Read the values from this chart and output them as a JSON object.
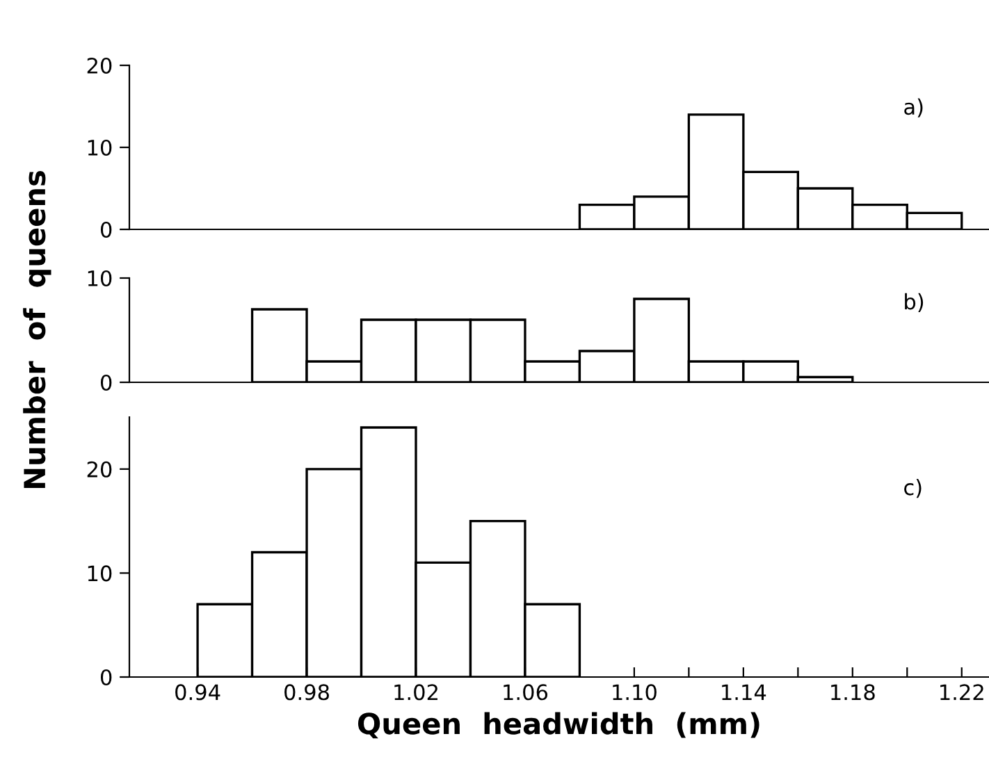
{
  "chart_data": [
    {
      "type": "histogram",
      "bins": [
        1.08,
        1.1,
        1.12,
        1.14,
        1.16,
        1.18,
        1.2,
        1.22
      ],
      "values": [
        3,
        4,
        14,
        7,
        5,
        3,
        2
      ],
      "color": "#ffffff",
      "xlim": [
        0.915,
        1.23
      ],
      "ylim": [
        0,
        20
      ],
      "yticks": [
        0,
        10,
        20
      ],
      "tick_labels": "y",
      "annotations": [
        "a)"
      ]
    },
    {
      "type": "histogram",
      "bins": [
        0.96,
        0.98,
        1.0,
        1.02,
        1.04,
        1.06,
        1.08,
        1.1,
        1.12,
        1.14,
        1.16,
        1.18
      ],
      "values": [
        7,
        2,
        6,
        6,
        6,
        2,
        3,
        8,
        2,
        2,
        0.5
      ],
      "color": "#ffffff",
      "xlim": [
        0.915,
        1.23
      ],
      "ylim": [
        0,
        10
      ],
      "yticks": [
        0,
        10
      ],
      "tick_labels": "y",
      "ylabel": "Number  of  queens",
      "annotations": [
        "b)"
      ]
    },
    {
      "type": "histogram",
      "bins": [
        0.94,
        0.96,
        0.98,
        1.0,
        1.02,
        1.04,
        1.06,
        1.08
      ],
      "values": [
        7,
        12,
        20,
        24,
        11,
        15,
        7
      ],
      "color": "#ffffff",
      "xlim": [
        0.915,
        1.23
      ],
      "ylim": [
        0,
        25
      ],
      "yticks": [
        0,
        10,
        20
      ],
      "xticks": [
        0.94,
        {
          "value": 0.96,
          "label": null
        },
        0.98,
        {
          "value": 1.0,
          "label": null
        },
        1.02,
        {
          "value": 1.04,
          "label": null
        },
        1.06,
        {
          "value": 1.08,
          "label": null
        },
        {
          "value": 1.1,
          "label": "1.10"
        },
        {
          "value": 1.12,
          "label": null
        },
        1.14,
        {
          "value": 1.16,
          "label": null
        },
        1.18,
        {
          "value": 1.2,
          "label": null
        },
        1.22
      ],
      "xlabel": "Queen  headwidth  (mm)",
      "annotations": [
        "c)"
      ]
    }
  ]
}
